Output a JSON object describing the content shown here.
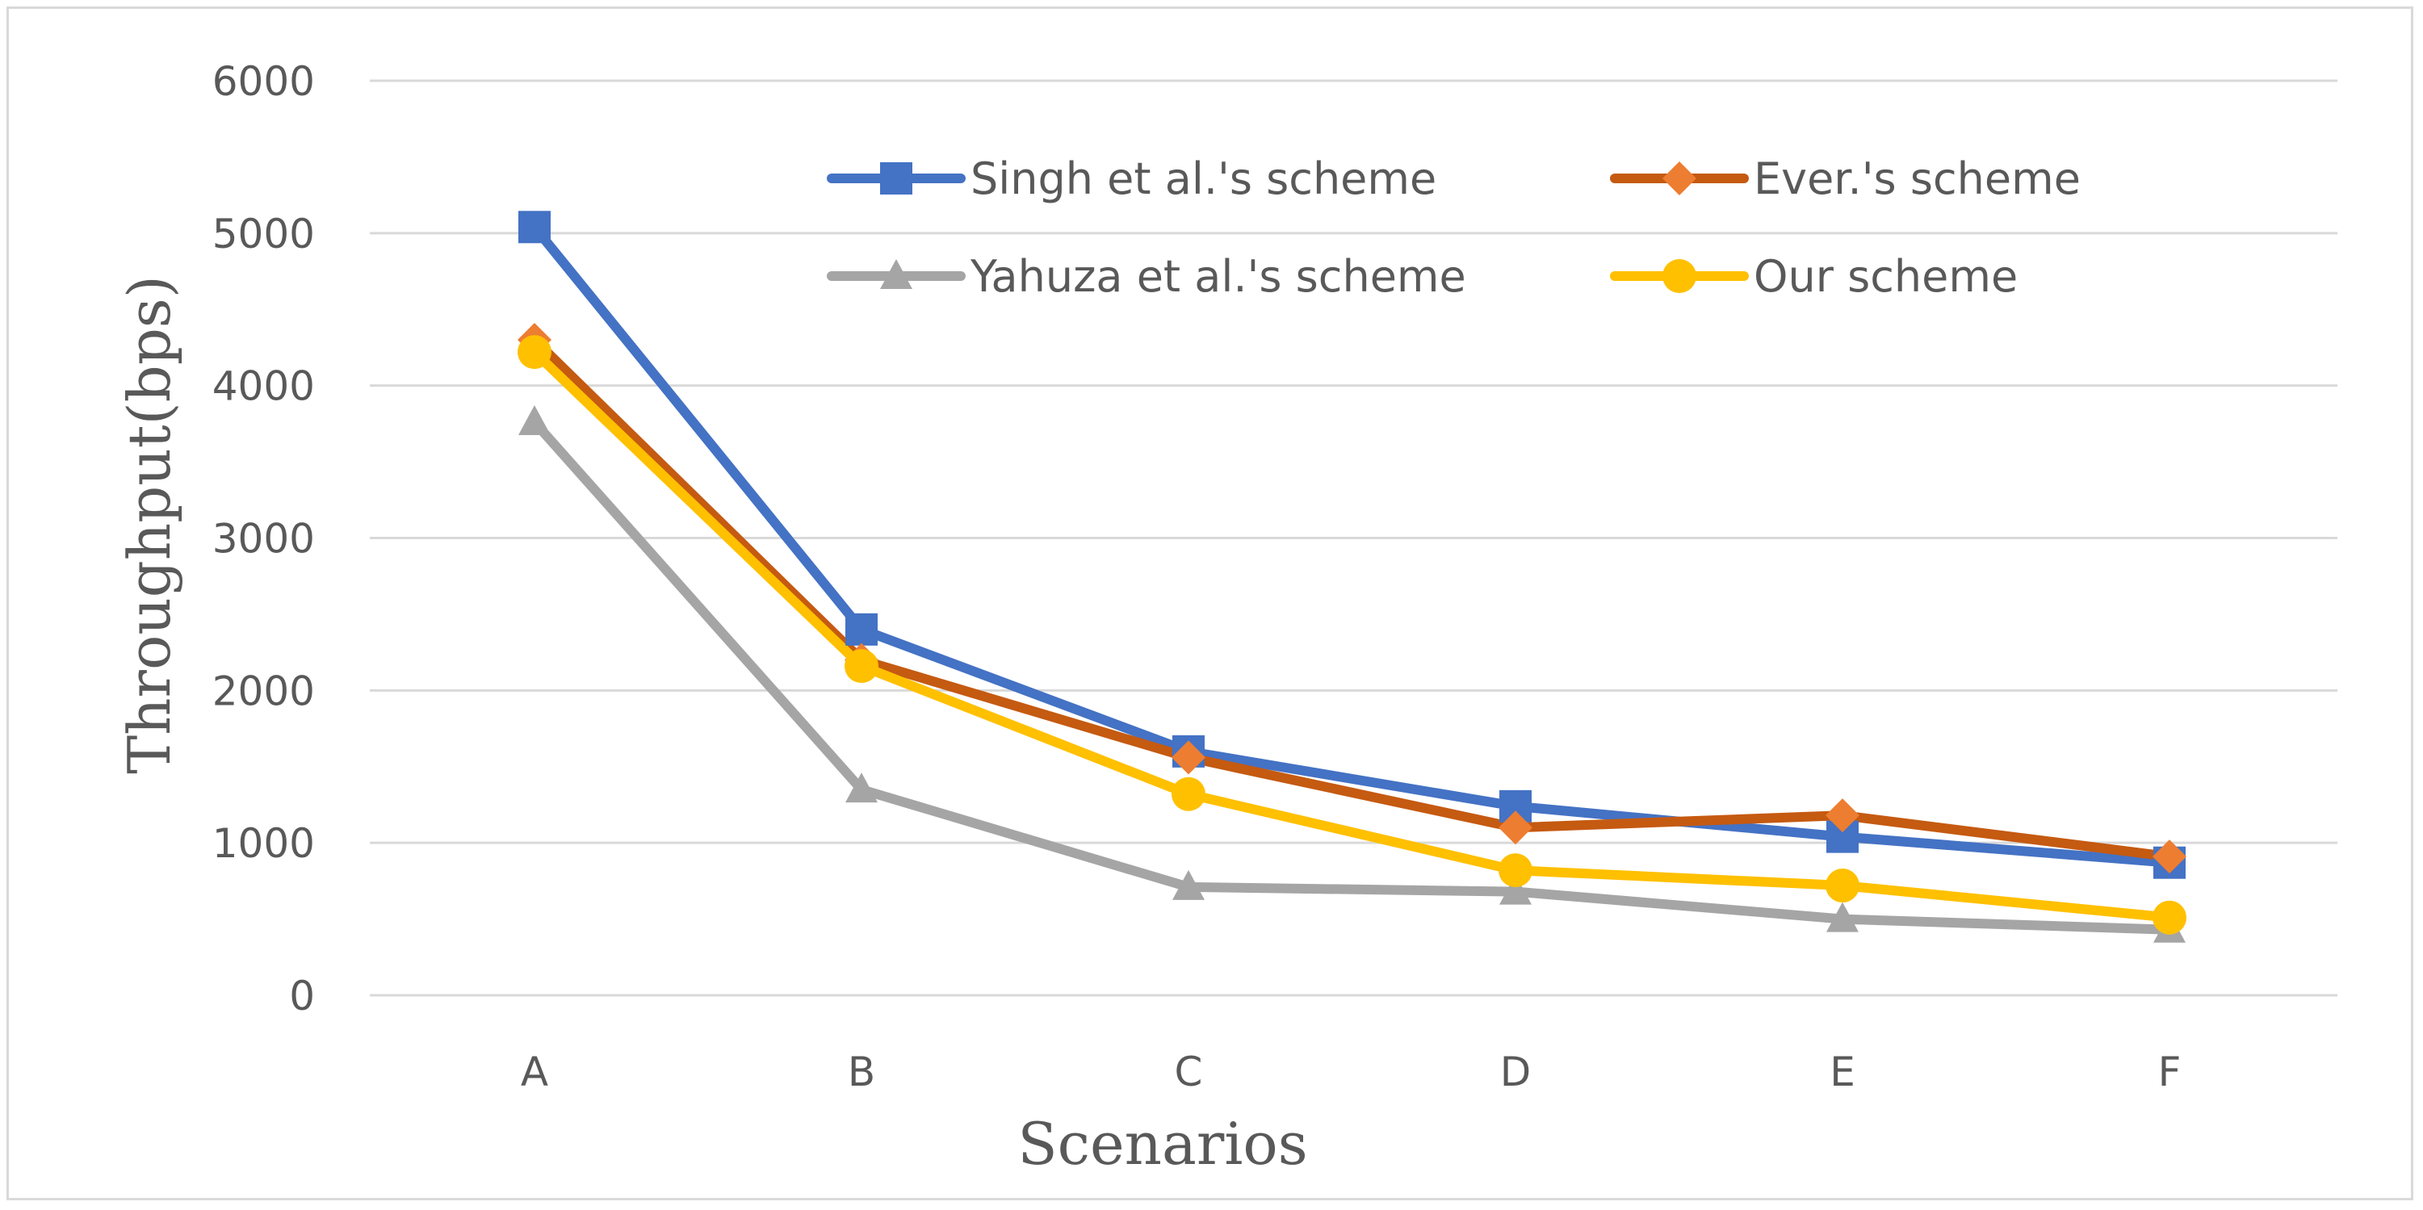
{
  "chart_data": {
    "type": "line",
    "title": "",
    "xlabel": "Scenarios",
    "ylabel": "Throughput(bps)",
    "categories": [
      "A",
      "B",
      "C",
      "D",
      "E",
      "F"
    ],
    "ylim": [
      0,
      6000
    ],
    "yticks": [
      0,
      1000,
      2000,
      3000,
      4000,
      5000,
      6000
    ],
    "grid": true,
    "legend_position": "top-right",
    "series": [
      {
        "name": "Singh et al.'s scheme",
        "color": "#4472C4",
        "marker": "square",
        "values": [
          5040,
          2400,
          1600,
          1240,
          1040,
          870
        ]
      },
      {
        "name": "Ever.'s scheme",
        "color": "#C55A11",
        "marker_color": "#ED7D31",
        "marker": "diamond",
        "values": [
          4300,
          2200,
          1560,
          1100,
          1180,
          910
        ]
      },
      {
        "name": "Yahuza et al.'s scheme",
        "color": "#A5A5A5",
        "marker": "triangle",
        "values": [
          3760,
          1350,
          710,
          680,
          500,
          430
        ]
      },
      {
        "name": "Our scheme",
        "color": "#FFC000",
        "marker": "circle",
        "values": [
          4220,
          2160,
          1320,
          820,
          720,
          510
        ]
      }
    ]
  }
}
